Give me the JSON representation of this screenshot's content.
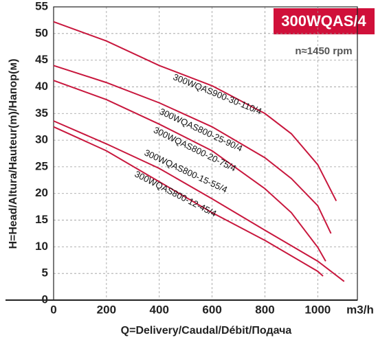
{
  "chart_data": {
    "type": "line",
    "title": "300WQAS/4",
    "subtitle": "n≈1450 rpm",
    "x_label": "Q=Delivery/Caudal/Débit/Подача",
    "x_unit": "m3/h",
    "y_label": "H=Head/Altura/Hauteur(m)/Напор(м)",
    "xlim": [
      0,
      1150
    ],
    "ylim": [
      0,
      55
    ],
    "xticks": [
      0,
      200,
      400,
      600,
      800,
      1000
    ],
    "yticks": [
      0,
      5,
      10,
      15,
      20,
      25,
      30,
      35,
      40,
      45,
      50,
      55
    ],
    "grid": true,
    "series": [
      {
        "name": "300WQAS900-30-110/4",
        "color": "#c8173d",
        "x": [
          0,
          200,
          400,
          600,
          800,
          900,
          1000,
          1070
        ],
        "values": [
          52.2,
          48.6,
          44,
          40.2,
          35,
          31.2,
          25.4,
          18.6
        ]
      },
      {
        "name": "300WQAS800-25-90/4",
        "color": "#c8173d",
        "x": [
          0,
          200,
          400,
          600,
          800,
          900,
          1000,
          1050
        ],
        "values": [
          44,
          40.8,
          37,
          32.5,
          26.7,
          22.8,
          17.7,
          12.5
        ]
      },
      {
        "name": "300WQAS800-20-75/4",
        "color": "#c8173d",
        "x": [
          0,
          200,
          400,
          600,
          800,
          900,
          1000,
          1030
        ],
        "values": [
          41.2,
          37.6,
          33,
          28,
          20.9,
          16.4,
          9.9,
          7.3
        ]
      },
      {
        "name": "300WQAS800-15-55/4",
        "color": "#c8173d",
        "x": [
          0,
          200,
          400,
          600,
          800,
          1000,
          1100
        ],
        "values": [
          33.6,
          29.3,
          24.7,
          19,
          13.1,
          7.3,
          3.5
        ]
      },
      {
        "name": "300WQAS800-12-45/4",
        "color": "#c8173d",
        "x": [
          0,
          200,
          400,
          600,
          800,
          1000,
          1020
        ],
        "values": [
          32.5,
          28,
          22.2,
          16.4,
          11.2,
          5.4,
          4.5
        ]
      }
    ]
  }
}
